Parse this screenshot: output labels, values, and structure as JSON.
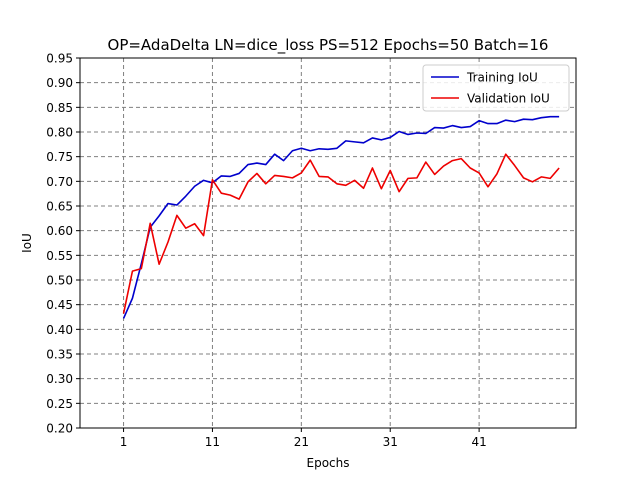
{
  "chart_data": {
    "type": "line",
    "title": "OP=AdaDelta LN=dice_loss PS=512 Epochs=50 Batch=16",
    "xlabel": "Epochs",
    "ylabel": "IoU",
    "xlim": [
      -3.9,
      51.9
    ],
    "ylim": [
      0.2,
      0.95
    ],
    "x_ticks": [
      1,
      11,
      21,
      31,
      41
    ],
    "y_ticks": [
      0.2,
      0.25,
      0.3,
      0.35,
      0.4,
      0.45,
      0.5,
      0.55,
      0.6,
      0.65,
      0.7,
      0.75,
      0.8,
      0.85,
      0.9,
      0.95
    ],
    "grid": true,
    "legend_position": "top-right",
    "x": [
      1,
      2,
      3,
      4,
      5,
      6,
      7,
      8,
      9,
      10,
      11,
      12,
      13,
      14,
      15,
      16,
      17,
      18,
      19,
      20,
      21,
      22,
      23,
      24,
      25,
      26,
      27,
      28,
      29,
      30,
      31,
      32,
      33,
      34,
      35,
      36,
      37,
      38,
      39,
      40,
      41,
      42,
      43,
      44,
      45,
      46,
      47,
      48,
      49,
      50
    ],
    "series": [
      {
        "name": "Training IoU",
        "color": "#0000cc",
        "values": [
          0.422,
          0.463,
          0.533,
          0.607,
          0.63,
          0.655,
          0.652,
          0.67,
          0.69,
          0.702,
          0.697,
          0.711,
          0.71,
          0.716,
          0.734,
          0.737,
          0.734,
          0.755,
          0.742,
          0.762,
          0.767,
          0.762,
          0.766,
          0.765,
          0.767,
          0.782,
          0.78,
          0.778,
          0.788,
          0.784,
          0.789,
          0.801,
          0.795,
          0.798,
          0.797,
          0.809,
          0.808,
          0.813,
          0.809,
          0.811,
          0.823,
          0.817,
          0.817,
          0.824,
          0.821,
          0.826,
          0.825,
          0.829,
          0.831,
          0.831
        ]
      },
      {
        "name": "Validation IoU",
        "color": "#ee0000",
        "values": [
          0.432,
          0.518,
          0.523,
          0.615,
          0.532,
          0.577,
          0.631,
          0.605,
          0.614,
          0.59,
          0.703,
          0.676,
          0.672,
          0.664,
          0.699,
          0.716,
          0.695,
          0.712,
          0.71,
          0.707,
          0.717,
          0.743,
          0.71,
          0.709,
          0.695,
          0.692,
          0.702,
          0.686,
          0.727,
          0.685,
          0.722,
          0.679,
          0.706,
          0.707,
          0.739,
          0.714,
          0.731,
          0.742,
          0.746,
          0.727,
          0.717,
          0.689,
          0.715,
          0.755,
          0.732,
          0.707,
          0.699,
          0.709,
          0.706,
          0.727
        ]
      }
    ]
  }
}
